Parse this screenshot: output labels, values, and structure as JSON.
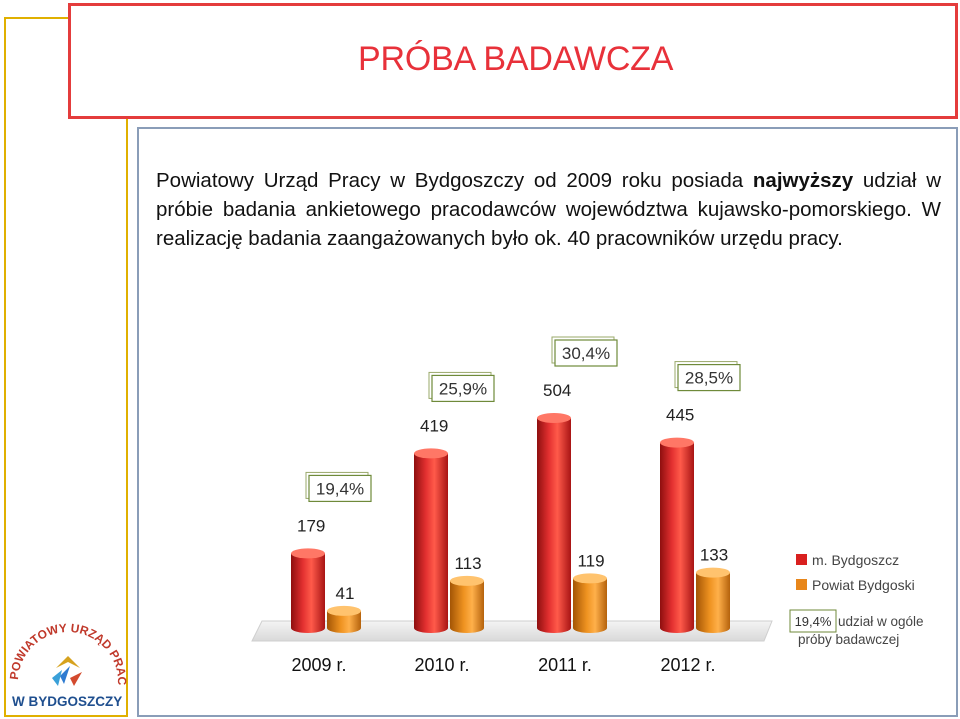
{
  "slide": {
    "title": "PRÓBA BADAWCZA",
    "paragraph": {
      "part1": "Powiatowy Urząd Pracy w Bydgoszczy od 2009 roku posiada ",
      "bold": "najwyższy",
      "part2": " udział w próbie badania ankietowego pracodawców województwa kujawsko-pomorskiego. W realizację badania zaangażowanych było ok. 40 pracowników urzędu pracy."
    }
  },
  "logo": {
    "line1": "POWIATOWY URZĄD PRACY",
    "line2": "W BYDGOSZCZY"
  },
  "chart_data": {
    "type": "bar",
    "categories": [
      "2009 r.",
      "2010 r.",
      "2011 r.",
      "2012 r."
    ],
    "series": [
      {
        "name": "m. Bydgoszcz",
        "values": [
          179,
          419,
          504,
          445
        ],
        "color": "#d9201f"
      },
      {
        "name": "Powiat Bydgoski",
        "values": [
          41,
          113,
          119,
          133
        ],
        "color": "#e8861a"
      }
    ],
    "share_labels": [
      "19,4%",
      "25,9%",
      "30,4%",
      "28,5%"
    ],
    "legend_note": {
      "value": "19,4%",
      "text": "udział w ogóle próby badawczej"
    },
    "ylim": [
      0,
      504
    ],
    "grid": false,
    "legend_position": "right"
  }
}
